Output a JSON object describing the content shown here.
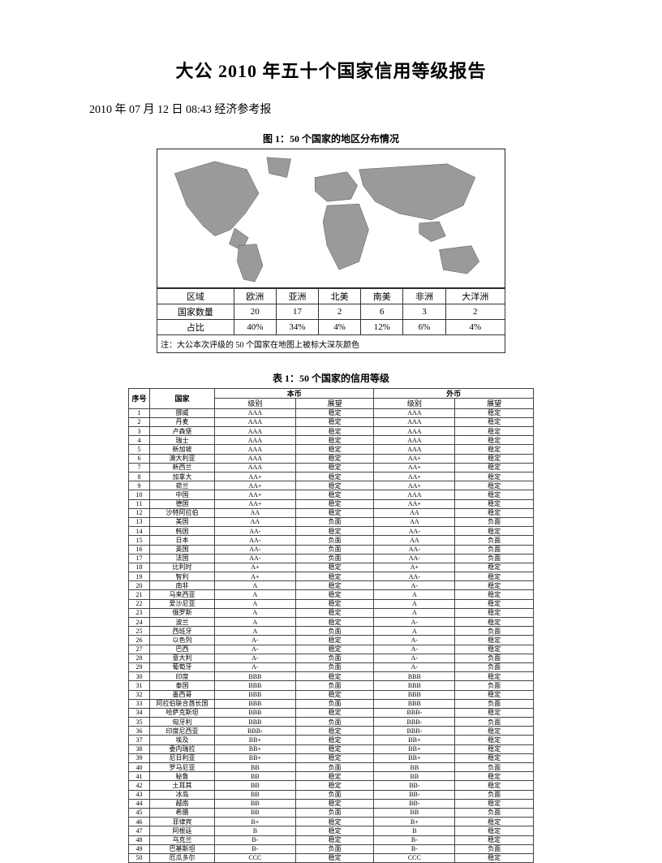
{
  "title": "大公 2010 年五十个国家信用等级报告",
  "dateline": "2010 年 07 月 12 日 08:43 经济参考报",
  "figure1": {
    "title": "图 1：50 个国家的地区分布情况",
    "map_land_fill": "#9a9a9a",
    "map_stroke": "#555555",
    "map_bg": "#ffffff",
    "regions": {
      "row_header": "区域",
      "count_header": "国家数量",
      "ratio_header": "占比",
      "columns": [
        "欧洲",
        "亚洲",
        "北美",
        "南美",
        "非洲",
        "大洋洲"
      ],
      "counts": [
        "20",
        "17",
        "2",
        "6",
        "3",
        "2"
      ],
      "ratios": [
        "40%",
        "34%",
        "4%",
        "12%",
        "6%",
        "4%"
      ]
    },
    "note": "注：大公本次评级的 50 个国家在地图上被标大深灰颜色"
  },
  "table1": {
    "title": "表 1：50 个国家的信用等级",
    "headers": {
      "seq": "序号",
      "country": "国家",
      "local": "本币",
      "foreign": "外币",
      "grade": "级别",
      "outlook": "展望"
    },
    "rows": [
      {
        "n": 1,
        "c": "挪威",
        "lg": "AAA",
        "lo": "稳定",
        "fg": "AAA",
        "fo": "稳定"
      },
      {
        "n": 2,
        "c": "丹麦",
        "lg": "AAA",
        "lo": "稳定",
        "fg": "AAA",
        "fo": "稳定"
      },
      {
        "n": 3,
        "c": "卢森堡",
        "lg": "AAA",
        "lo": "稳定",
        "fg": "AAA",
        "fo": "稳定"
      },
      {
        "n": 4,
        "c": "瑞士",
        "lg": "AAA",
        "lo": "稳定",
        "fg": "AAA",
        "fo": "稳定"
      },
      {
        "n": 5,
        "c": "新加坡",
        "lg": "AAA",
        "lo": "稳定",
        "fg": "AAA",
        "fo": "稳定"
      },
      {
        "n": 6,
        "c": "澳大利亚",
        "lg": "AAA",
        "lo": "稳定",
        "fg": "AA+",
        "fo": "稳定"
      },
      {
        "n": 7,
        "c": "新西兰",
        "lg": "AAA",
        "lo": "稳定",
        "fg": "AA+",
        "fo": "稳定"
      },
      {
        "n": 8,
        "c": "加拿大",
        "lg": "AA+",
        "lo": "稳定",
        "fg": "AA+",
        "fo": "稳定"
      },
      {
        "n": 9,
        "c": "荷兰",
        "lg": "AA+",
        "lo": "稳定",
        "fg": "AA+",
        "fo": "稳定"
      },
      {
        "n": 10,
        "c": "中国",
        "lg": "AA+",
        "lo": "稳定",
        "fg": "AAA",
        "fo": "稳定"
      },
      {
        "n": 11,
        "c": "德国",
        "lg": "AA+",
        "lo": "稳定",
        "fg": "AA+",
        "fo": "稳定"
      },
      {
        "n": 12,
        "c": "沙特阿拉伯",
        "lg": "AA",
        "lo": "稳定",
        "fg": "AA",
        "fo": "稳定"
      },
      {
        "n": 13,
        "c": "美国",
        "lg": "AA",
        "lo": "负面",
        "fg": "AA",
        "fo": "负面"
      },
      {
        "n": 14,
        "c": "韩国",
        "lg": "AA-",
        "lo": "稳定",
        "fg": "AA-",
        "fo": "稳定"
      },
      {
        "n": 15,
        "c": "日本",
        "lg": "AA-",
        "lo": "负面",
        "fg": "AA",
        "fo": "负面"
      },
      {
        "n": 16,
        "c": "英国",
        "lg": "AA-",
        "lo": "负面",
        "fg": "AA-",
        "fo": "负面"
      },
      {
        "n": 17,
        "c": "法国",
        "lg": "AA-",
        "lo": "负面",
        "fg": "AA-",
        "fo": "负面"
      },
      {
        "n": 18,
        "c": "比利时",
        "lg": "A+",
        "lo": "稳定",
        "fg": "A+",
        "fo": "稳定"
      },
      {
        "n": 19,
        "c": "智利",
        "lg": "A+",
        "lo": "稳定",
        "fg": "AA-",
        "fo": "稳定"
      },
      {
        "n": 20,
        "c": "南非",
        "lg": "A",
        "lo": "稳定",
        "fg": "A-",
        "fo": "稳定"
      },
      {
        "n": 21,
        "c": "马来西亚",
        "lg": "A",
        "lo": "稳定",
        "fg": "A",
        "fo": "稳定"
      },
      {
        "n": 22,
        "c": "爱沙尼亚",
        "lg": "A",
        "lo": "稳定",
        "fg": "A",
        "fo": "稳定"
      },
      {
        "n": 23,
        "c": "俄罗斯",
        "lg": "A",
        "lo": "稳定",
        "fg": "A",
        "fo": "稳定"
      },
      {
        "n": 24,
        "c": "波兰",
        "lg": "A",
        "lo": "稳定",
        "fg": "A-",
        "fo": "稳定"
      },
      {
        "n": 25,
        "c": "西班牙",
        "lg": "A",
        "lo": "负面",
        "fg": "A",
        "fo": "负面"
      },
      {
        "n": 26,
        "c": "以色列",
        "lg": "A-",
        "lo": "稳定",
        "fg": "A-",
        "fo": "稳定"
      },
      {
        "n": 27,
        "c": "巴西",
        "lg": "A-",
        "lo": "稳定",
        "fg": "A-",
        "fo": "稳定"
      },
      {
        "n": 28,
        "c": "意大利",
        "lg": "A-",
        "lo": "负面",
        "fg": "A-",
        "fo": "负面"
      },
      {
        "n": 29,
        "c": "葡萄牙",
        "lg": "A-",
        "lo": "负面",
        "fg": "A-",
        "fo": "负面"
      },
      {
        "n": 30,
        "c": "印度",
        "lg": "BBB",
        "lo": "稳定",
        "fg": "BBB",
        "fo": "稳定"
      },
      {
        "n": 31,
        "c": "泰国",
        "lg": "BBB",
        "lo": "负面",
        "fg": "BBB",
        "fo": "负面"
      },
      {
        "n": 32,
        "c": "墨西哥",
        "lg": "BBB",
        "lo": "稳定",
        "fg": "BBB",
        "fo": "稳定"
      },
      {
        "n": 33,
        "c": "阿拉伯联合酋长国",
        "lg": "BBB",
        "lo": "负面",
        "fg": "BBB",
        "fo": "负面"
      },
      {
        "n": 34,
        "c": "哈萨克斯坦",
        "lg": "BBB",
        "lo": "稳定",
        "fg": "BBB-",
        "fo": "稳定"
      },
      {
        "n": 35,
        "c": "匈牙利",
        "lg": "BBB",
        "lo": "负面",
        "fg": "BBB-",
        "fo": "负面"
      },
      {
        "n": 36,
        "c": "印度尼西亚",
        "lg": "BBB-",
        "lo": "稳定",
        "fg": "BBB-",
        "fo": "稳定"
      },
      {
        "n": 37,
        "c": "埃及",
        "lg": "BB+",
        "lo": "稳定",
        "fg": "BB+",
        "fo": "稳定"
      },
      {
        "n": 38,
        "c": "委内瑞拉",
        "lg": "BB+",
        "lo": "稳定",
        "fg": "BB+",
        "fo": "稳定"
      },
      {
        "n": 39,
        "c": "尼日利亚",
        "lg": "BB+",
        "lo": "稳定",
        "fg": "BB+",
        "fo": "稳定"
      },
      {
        "n": 40,
        "c": "罗马尼亚",
        "lg": "BB",
        "lo": "负面",
        "fg": "BB",
        "fo": "负面"
      },
      {
        "n": 41,
        "c": "秘鲁",
        "lg": "BB",
        "lo": "稳定",
        "fg": "BB",
        "fo": "稳定"
      },
      {
        "n": 42,
        "c": "土耳其",
        "lg": "BB",
        "lo": "稳定",
        "fg": "BB-",
        "fo": "稳定"
      },
      {
        "n": 43,
        "c": "冰岛",
        "lg": "BB",
        "lo": "负面",
        "fg": "BB-",
        "fo": "负面"
      },
      {
        "n": 44,
        "c": "越南",
        "lg": "BB",
        "lo": "稳定",
        "fg": "BB-",
        "fo": "稳定"
      },
      {
        "n": 45,
        "c": "希腊",
        "lg": "BB",
        "lo": "负面",
        "fg": "BB",
        "fo": "负面"
      },
      {
        "n": 46,
        "c": "菲律宾",
        "lg": "B+",
        "lo": "稳定",
        "fg": "B+",
        "fo": "稳定"
      },
      {
        "n": 47,
        "c": "阿根廷",
        "lg": "B",
        "lo": "稳定",
        "fg": "B",
        "fo": "稳定"
      },
      {
        "n": 48,
        "c": "乌克兰",
        "lg": "B-",
        "lo": "稳定",
        "fg": "B-",
        "fo": "稳定"
      },
      {
        "n": 49,
        "c": "巴基斯坦",
        "lg": "B-",
        "lo": "负面",
        "fg": "B-",
        "fo": "负面"
      },
      {
        "n": 50,
        "c": "厄瓜多尔",
        "lg": "CCC",
        "lo": "稳定",
        "fg": "CCC",
        "fo": "稳定"
      }
    ]
  }
}
